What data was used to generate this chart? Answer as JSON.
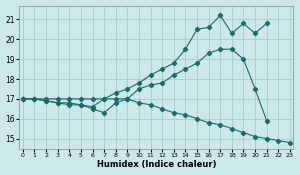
{
  "xlabel": "Humidex (Indice chaleur)",
  "bg_color": "#cce8e8",
  "grid_color": "#aacccc",
  "line_color": "#1a6b6b",
  "lines": [
    {
      "x": [
        0,
        1,
        2,
        3,
        4,
        5,
        6,
        7,
        8,
        9,
        10,
        11,
        12,
        13,
        14,
        15,
        16,
        17,
        18,
        19,
        20,
        21
      ],
      "y": [
        17.0,
        17.0,
        16.9,
        16.8,
        16.8,
        16.7,
        16.6,
        17.0,
        17.3,
        17.5,
        17.8,
        18.2,
        18.5,
        18.8,
        19.5,
        20.5,
        20.6,
        21.2,
        20.3,
        20.8,
        20.3,
        20.8
      ]
    },
    {
      "x": [
        0,
        1,
        2,
        3,
        4,
        5,
        6,
        7,
        8,
        9,
        10,
        11,
        12,
        13,
        14,
        15,
        16,
        17,
        18,
        19,
        20,
        21,
        22
      ],
      "y": [
        17.0,
        17.0,
        16.9,
        16.8,
        16.7,
        16.7,
        16.5,
        16.3,
        16.8,
        17.0,
        17.5,
        17.7,
        17.8,
        18.2,
        18.5,
        18.8,
        19.3,
        19.5,
        19.5,
        19.0,
        17.5,
        15.9,
        null
      ]
    },
    {
      "x": [
        0,
        1,
        2,
        3,
        4,
        5,
        6,
        7,
        8,
        9,
        10,
        11,
        12,
        13,
        14,
        15,
        16,
        17,
        18,
        19,
        20,
        21,
        22,
        23
      ],
      "y": [
        17.0,
        17.0,
        17.0,
        17.0,
        17.0,
        17.0,
        17.0,
        17.0,
        17.0,
        17.0,
        16.8,
        16.7,
        16.5,
        16.3,
        16.2,
        16.0,
        15.8,
        15.7,
        15.5,
        15.3,
        15.1,
        15.0,
        14.9,
        14.8
      ]
    }
  ],
  "xlim": [
    -0.3,
    23.3
  ],
  "ylim": [
    14.5,
    21.7
  ],
  "yticks": [
    15,
    16,
    17,
    18,
    19,
    20,
    21
  ],
  "xticks": [
    0,
    1,
    2,
    3,
    4,
    5,
    6,
    7,
    8,
    9,
    10,
    11,
    12,
    13,
    14,
    15,
    16,
    17,
    18,
    19,
    20,
    21,
    22,
    23
  ]
}
